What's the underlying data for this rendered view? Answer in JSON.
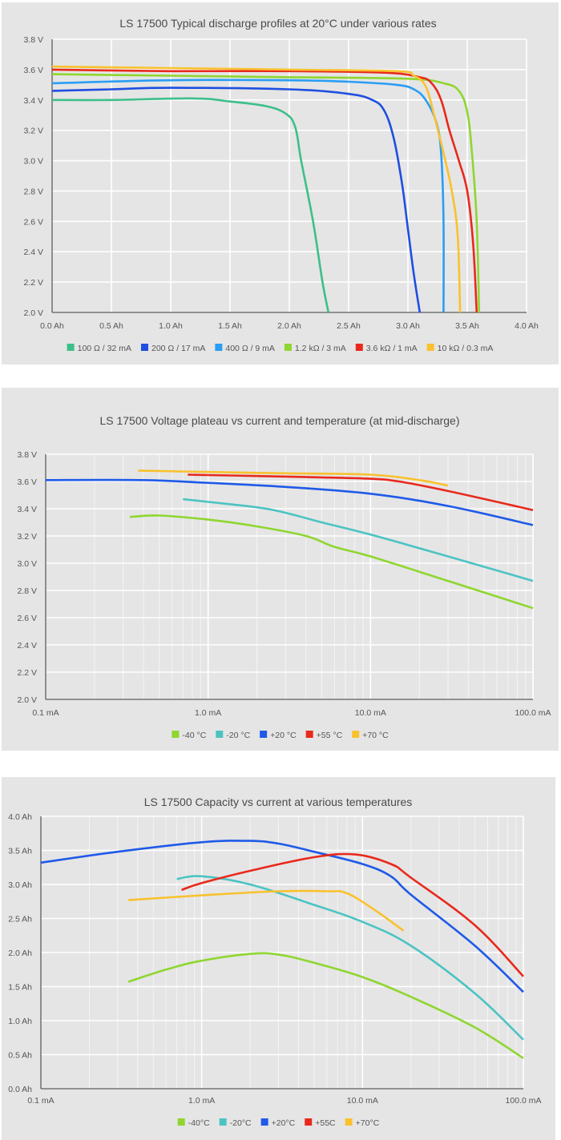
{
  "chart_data": [
    {
      "type": "line",
      "title": "LS 17500 Typical discharge profiles at 20°C under various rates",
      "xlabel": "",
      "ylabel": "",
      "xscale": "linear",
      "xlim": [
        0,
        4
      ],
      "ylim": [
        2.0,
        3.8
      ],
      "x_ticks": [
        0,
        0.5,
        1.0,
        1.5,
        2.0,
        2.5,
        3.0,
        3.5,
        4.0
      ],
      "x_tick_labels": [
        "0.0 Ah",
        "0.5 Ah",
        "1.0 Ah",
        "1.5 Ah",
        "2.0 Ah",
        "2.5 Ah",
        "3.0 Ah",
        "3.5 Ah",
        "4.0 Ah"
      ],
      "y_ticks": [
        2.0,
        2.2,
        2.4,
        2.6,
        2.8,
        3.0,
        3.2,
        3.4,
        3.6,
        3.8
      ],
      "y_tick_labels": [
        "2.0 V",
        "2.2 V",
        "2.4 V",
        "2.6 V",
        "2.8 V",
        "3.0 V",
        "3.2 V",
        "3.4 V",
        "3.6 V",
        "3.8 V"
      ],
      "grid": true,
      "legend_position": "bottom",
      "series": [
        {
          "name": "100 Ω / 32 mA",
          "color": "#3dbf8a",
          "points": [
            [
              0,
              3.4
            ],
            [
              0.5,
              3.4
            ],
            [
              1.2,
              3.41
            ],
            [
              1.5,
              3.39
            ],
            [
              1.8,
              3.36
            ],
            [
              1.97,
              3.31
            ],
            [
              2.05,
              3.22
            ],
            [
              2.1,
              3.0
            ],
            [
              2.2,
              2.6
            ],
            [
              2.28,
              2.2
            ],
            [
              2.33,
              2.0
            ]
          ]
        },
        {
          "name": "200 Ω / 17 mA",
          "color": "#1f4fe0",
          "points": [
            [
              0,
              3.46
            ],
            [
              0.5,
              3.47
            ],
            [
              1.0,
              3.48
            ],
            [
              2.0,
              3.47
            ],
            [
              2.5,
              3.44
            ],
            [
              2.7,
              3.4
            ],
            [
              2.8,
              3.33
            ],
            [
              2.88,
              3.15
            ],
            [
              2.95,
              2.85
            ],
            [
              3.0,
              2.55
            ],
            [
              3.05,
              2.25
            ],
            [
              3.1,
              2.0
            ]
          ]
        },
        {
          "name": "400 Ω / 9 mA",
          "color": "#2a9df4",
          "points": [
            [
              0,
              3.51
            ],
            [
              1.0,
              3.53
            ],
            [
              2.0,
              3.53
            ],
            [
              2.5,
              3.52
            ],
            [
              2.9,
              3.5
            ],
            [
              3.05,
              3.47
            ],
            [
              3.15,
              3.4
            ],
            [
              3.24,
              3.25
            ],
            [
              3.28,
              3.05
            ],
            [
              3.3,
              2.6
            ],
            [
              3.3,
              2.0
            ]
          ]
        },
        {
          "name": "1.2 kΩ / 3 mA",
          "color": "#8fd630",
          "points": [
            [
              0,
              3.57
            ],
            [
              1.0,
              3.56
            ],
            [
              2.0,
              3.55
            ],
            [
              3.0,
              3.54
            ],
            [
              3.3,
              3.51
            ],
            [
              3.43,
              3.46
            ],
            [
              3.5,
              3.32
            ],
            [
              3.54,
              3.05
            ],
            [
              3.58,
              2.6
            ],
            [
              3.6,
              2.0
            ]
          ]
        },
        {
          "name": "3.6 kΩ / 1 mA",
          "color": "#e8291c",
          "points": [
            [
              0,
              3.6
            ],
            [
              1.0,
              3.59
            ],
            [
              2.0,
              3.59
            ],
            [
              2.8,
              3.58
            ],
            [
              3.1,
              3.55
            ],
            [
              3.2,
              3.51
            ],
            [
              3.28,
              3.4
            ],
            [
              3.35,
              3.2
            ],
            [
              3.43,
              3.0
            ],
            [
              3.5,
              2.8
            ],
            [
              3.55,
              2.45
            ],
            [
              3.58,
              2.0
            ]
          ]
        },
        {
          "name": "10 kΩ / 0.3 mA",
          "color": "#f9c12e",
          "points": [
            [
              0,
              3.62
            ],
            [
              1.0,
              3.61
            ],
            [
              2.0,
              3.6
            ],
            [
              2.9,
              3.59
            ],
            [
              3.05,
              3.56
            ],
            [
              3.15,
              3.49
            ],
            [
              3.22,
              3.3
            ],
            [
              3.3,
              3.05
            ],
            [
              3.37,
              2.8
            ],
            [
              3.42,
              2.5
            ],
            [
              3.44,
              2.0
            ]
          ]
        }
      ]
    },
    {
      "type": "line",
      "title": "LS 17500 Voltage plateau vs current and temperature (at mid-discharge)",
      "xlabel": "",
      "ylabel": "",
      "xscale": "log",
      "xlim": [
        0.1,
        100
      ],
      "ylim": [
        2.0,
        3.8
      ],
      "x_ticks": [
        0.1,
        1.0,
        10.0,
        100.0
      ],
      "x_tick_labels": [
        "0.1 mA",
        "1.0 mA",
        "10.0 mA",
        "100.0 mA"
      ],
      "y_ticks": [
        2.0,
        2.2,
        2.4,
        2.6,
        2.8,
        3.0,
        3.2,
        3.4,
        3.6,
        3.8
      ],
      "y_tick_labels": [
        "2.0 V",
        "2.2 V",
        "2.4 V",
        "2.6 V",
        "2.8 V",
        "3.0 V",
        "3.2 V",
        "3.4 V",
        "3.6 V",
        "3.8 V"
      ],
      "grid": true,
      "legend_position": "bottom",
      "series": [
        {
          "name": "-40 °C",
          "color": "#8fd630",
          "points": [
            [
              0.33,
              3.34
            ],
            [
              0.5,
              3.35
            ],
            [
              1.0,
              3.32
            ],
            [
              2.0,
              3.27
            ],
            [
              4.0,
              3.2
            ],
            [
              6.0,
              3.12
            ],
            [
              10,
              3.05
            ],
            [
              30,
              2.87
            ],
            [
              100,
              2.67
            ]
          ]
        },
        {
          "name": "-20 °C",
          "color": "#4cc3c3",
          "points": [
            [
              0.7,
              3.47
            ],
            [
              1.0,
              3.45
            ],
            [
              2.0,
              3.41
            ],
            [
              3.0,
              3.37
            ],
            [
              5.0,
              3.3
            ],
            [
              10,
              3.21
            ],
            [
              30,
              3.05
            ],
            [
              100,
              2.87
            ]
          ]
        },
        {
          "name": "+20 °C",
          "color": "#1f5ae8",
          "points": [
            [
              0.1,
              3.61
            ],
            [
              0.4,
              3.61
            ],
            [
              1.0,
              3.59
            ],
            [
              3.0,
              3.56
            ],
            [
              10,
              3.51
            ],
            [
              30,
              3.42
            ],
            [
              100,
              3.28
            ]
          ]
        },
        {
          "name": "+55 °C",
          "color": "#e8291c",
          "points": [
            [
              0.75,
              3.65
            ],
            [
              2.0,
              3.64
            ],
            [
              5.0,
              3.63
            ],
            [
              10,
              3.62
            ],
            [
              15,
              3.6
            ],
            [
              30,
              3.53
            ],
            [
              100,
              3.39
            ]
          ]
        },
        {
          "name": "+70 °C",
          "color": "#f9c12e",
          "points": [
            [
              0.37,
              3.68
            ],
            [
              1.0,
              3.67
            ],
            [
              3.0,
              3.66
            ],
            [
              10,
              3.65
            ],
            [
              20,
              3.61
            ],
            [
              30,
              3.57
            ]
          ]
        }
      ]
    },
    {
      "type": "line",
      "title": "LS 17500 Capacity vs current at various temperatures",
      "xlabel": "",
      "ylabel": "",
      "xscale": "log",
      "xlim": [
        0.1,
        100
      ],
      "ylim": [
        0.0,
        4.0
      ],
      "x_ticks": [
        0.1,
        1.0,
        10.0,
        100.0
      ],
      "x_tick_labels": [
        "0.1 mA",
        "1.0 mA",
        "10.0 mA",
        "100.0 mA"
      ],
      "y_ticks": [
        0.0,
        0.5,
        1.0,
        1.5,
        2.0,
        2.5,
        3.0,
        3.5,
        4.0
      ],
      "y_tick_labels": [
        "0.0 Ah",
        "0.5 Ah",
        "1.0 Ah",
        "1.5 Ah",
        "2.0 Ah",
        "2.5 Ah",
        "3.0 Ah",
        "3.5 Ah",
        "4.0 Ah"
      ],
      "grid": true,
      "legend_position": "bottom",
      "series": [
        {
          "name": "-40°C",
          "color": "#8fd630",
          "points": [
            [
              0.35,
              1.57
            ],
            [
              0.6,
              1.75
            ],
            [
              1.0,
              1.88
            ],
            [
              2.0,
              1.98
            ],
            [
              3.0,
              1.97
            ],
            [
              5.0,
              1.85
            ],
            [
              10,
              1.64
            ],
            [
              20,
              1.35
            ],
            [
              50,
              0.9
            ],
            [
              100,
              0.45
            ]
          ]
        },
        {
          "name": "-20°C",
          "color": "#4cc3c3",
          "points": [
            [
              0.7,
              3.08
            ],
            [
              1.0,
              3.12
            ],
            [
              2.0,
              3.0
            ],
            [
              5.0,
              2.7
            ],
            [
              10,
              2.45
            ],
            [
              20,
              2.1
            ],
            [
              50,
              1.4
            ],
            [
              100,
              0.72
            ]
          ]
        },
        {
          "name": "+20°C",
          "color": "#1f5ae8",
          "points": [
            [
              0.1,
              3.32
            ],
            [
              0.3,
              3.48
            ],
            [
              1.0,
              3.62
            ],
            [
              2.0,
              3.64
            ],
            [
              3.0,
              3.6
            ],
            [
              5.0,
              3.48
            ],
            [
              10,
              3.3
            ],
            [
              15,
              3.12
            ],
            [
              20,
              2.85
            ],
            [
              50,
              2.1
            ],
            [
              100,
              1.42
            ]
          ]
        },
        {
          "name": "+55C",
          "color": "#e8291c",
          "points": [
            [
              0.75,
              2.92
            ],
            [
              1.0,
              3.02
            ],
            [
              2.0,
              3.2
            ],
            [
              5.0,
              3.4
            ],
            [
              9.0,
              3.44
            ],
            [
              15,
              3.3
            ],
            [
              20,
              3.1
            ],
            [
              50,
              2.4
            ],
            [
              100,
              1.65
            ]
          ]
        },
        {
          "name": "+70°C",
          "color": "#f9c12e",
          "points": [
            [
              0.35,
              2.77
            ],
            [
              1.0,
              2.84
            ],
            [
              3.0,
              2.9
            ],
            [
              6.0,
              2.9
            ],
            [
              8.0,
              2.87
            ],
            [
              12,
              2.62
            ],
            [
              18,
              2.32
            ]
          ]
        }
      ]
    }
  ]
}
